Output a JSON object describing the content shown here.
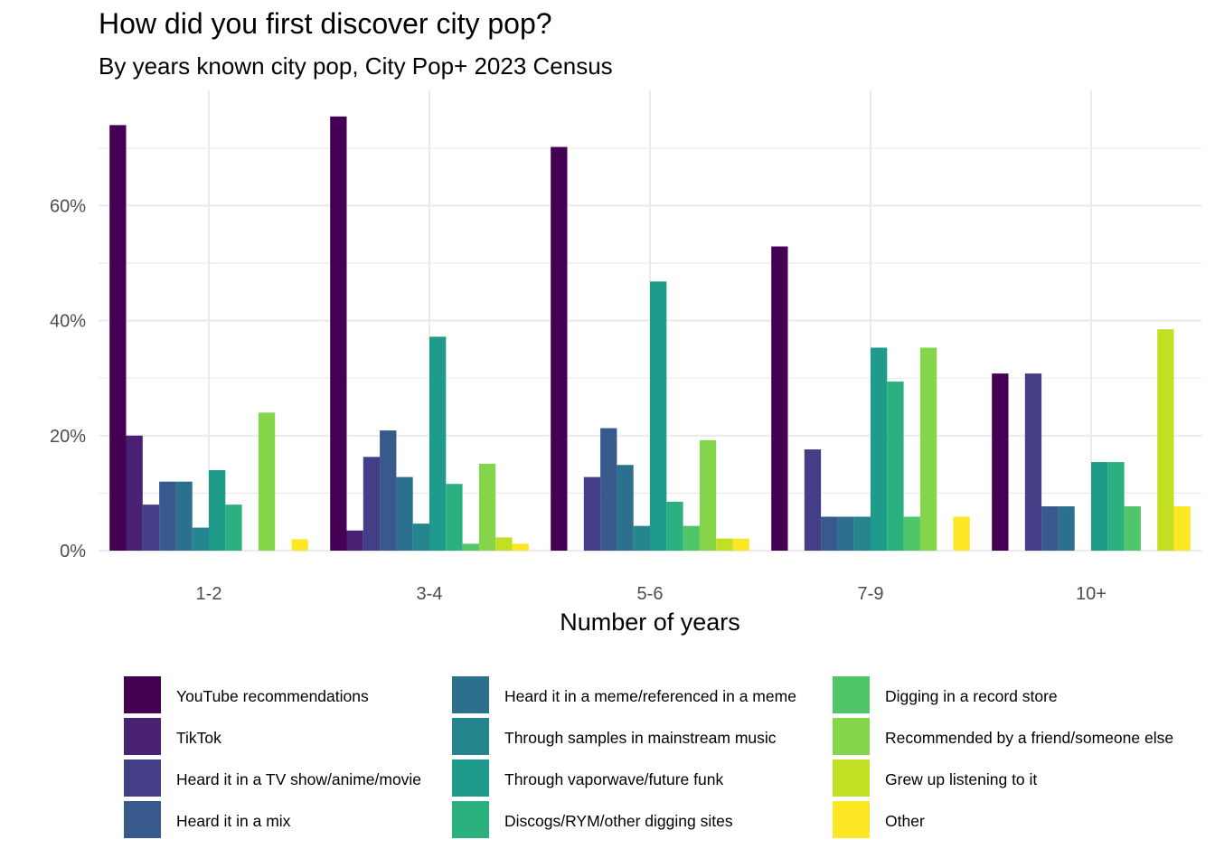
{
  "title": "How did you first discover city pop?",
  "subtitle": "By years known city pop, City Pop+ 2023 Census",
  "chart_data": {
    "type": "bar",
    "title": "How did you first discover city pop?",
    "subtitle": "By years known city pop, City Pop+ 2023 Census",
    "xlabel": "Number of years",
    "ylabel": "",
    "ylim": [
      0,
      0.76
    ],
    "yticks": [
      0,
      0.2,
      0.4,
      0.6
    ],
    "ytick_labels": [
      "0%",
      "20%",
      "40%",
      "60%"
    ],
    "grid": true,
    "legend_position": "bottom",
    "categories": [
      "1-2",
      "3-4",
      "5-6",
      "7-9",
      "10+"
    ],
    "series": [
      {
        "name": "YouTube recommendations",
        "color": "#440154",
        "values": [
          0.74,
          0.755,
          0.702,
          0.529,
          0.308
        ]
      },
      {
        "name": "TikTok",
        "color": "#482173",
        "values": [
          0.2,
          0.035,
          0.0,
          0.0,
          0.0
        ]
      },
      {
        "name": "Heard it in a TV show/anime/movie",
        "color": "#433E85",
        "values": [
          0.08,
          0.163,
          0.128,
          0.176,
          0.308
        ]
      },
      {
        "name": "Heard it in a mix",
        "color": "#38598C",
        "values": [
          0.12,
          0.209,
          0.213,
          0.059,
          0.077
        ]
      },
      {
        "name": "Heard it in a meme/referenced in a meme",
        "color": "#2D708E",
        "values": [
          0.12,
          0.128,
          0.149,
          0.059,
          0.077
        ]
      },
      {
        "name": "Through samples in mainstream music",
        "color": "#25858E",
        "values": [
          0.04,
          0.047,
          0.043,
          0.059,
          0.0
        ]
      },
      {
        "name": "Through vaporwave/future funk",
        "color": "#1E9B8A",
        "values": [
          0.14,
          0.372,
          0.468,
          0.353,
          0.154
        ]
      },
      {
        "name": "Discogs/RYM/other digging sites",
        "color": "#2BB07F",
        "values": [
          0.08,
          0.116,
          0.085,
          0.294,
          0.154
        ]
      },
      {
        "name": "Digging in a record store",
        "color": "#51C56A",
        "values": [
          0.0,
          0.012,
          0.043,
          0.059,
          0.077
        ]
      },
      {
        "name": "Recommended by a friend/someone else",
        "color": "#85D54A",
        "values": [
          0.24,
          0.151,
          0.192,
          0.353,
          0.0
        ]
      },
      {
        "name": "Grew up listening to it",
        "color": "#C2DF23",
        "values": [
          0.0,
          0.023,
          0.021,
          0.0,
          0.385
        ]
      },
      {
        "name": "Other",
        "color": "#FDE725",
        "values": [
          0.02,
          0.012,
          0.021,
          0.059,
          0.077
        ]
      }
    ]
  }
}
